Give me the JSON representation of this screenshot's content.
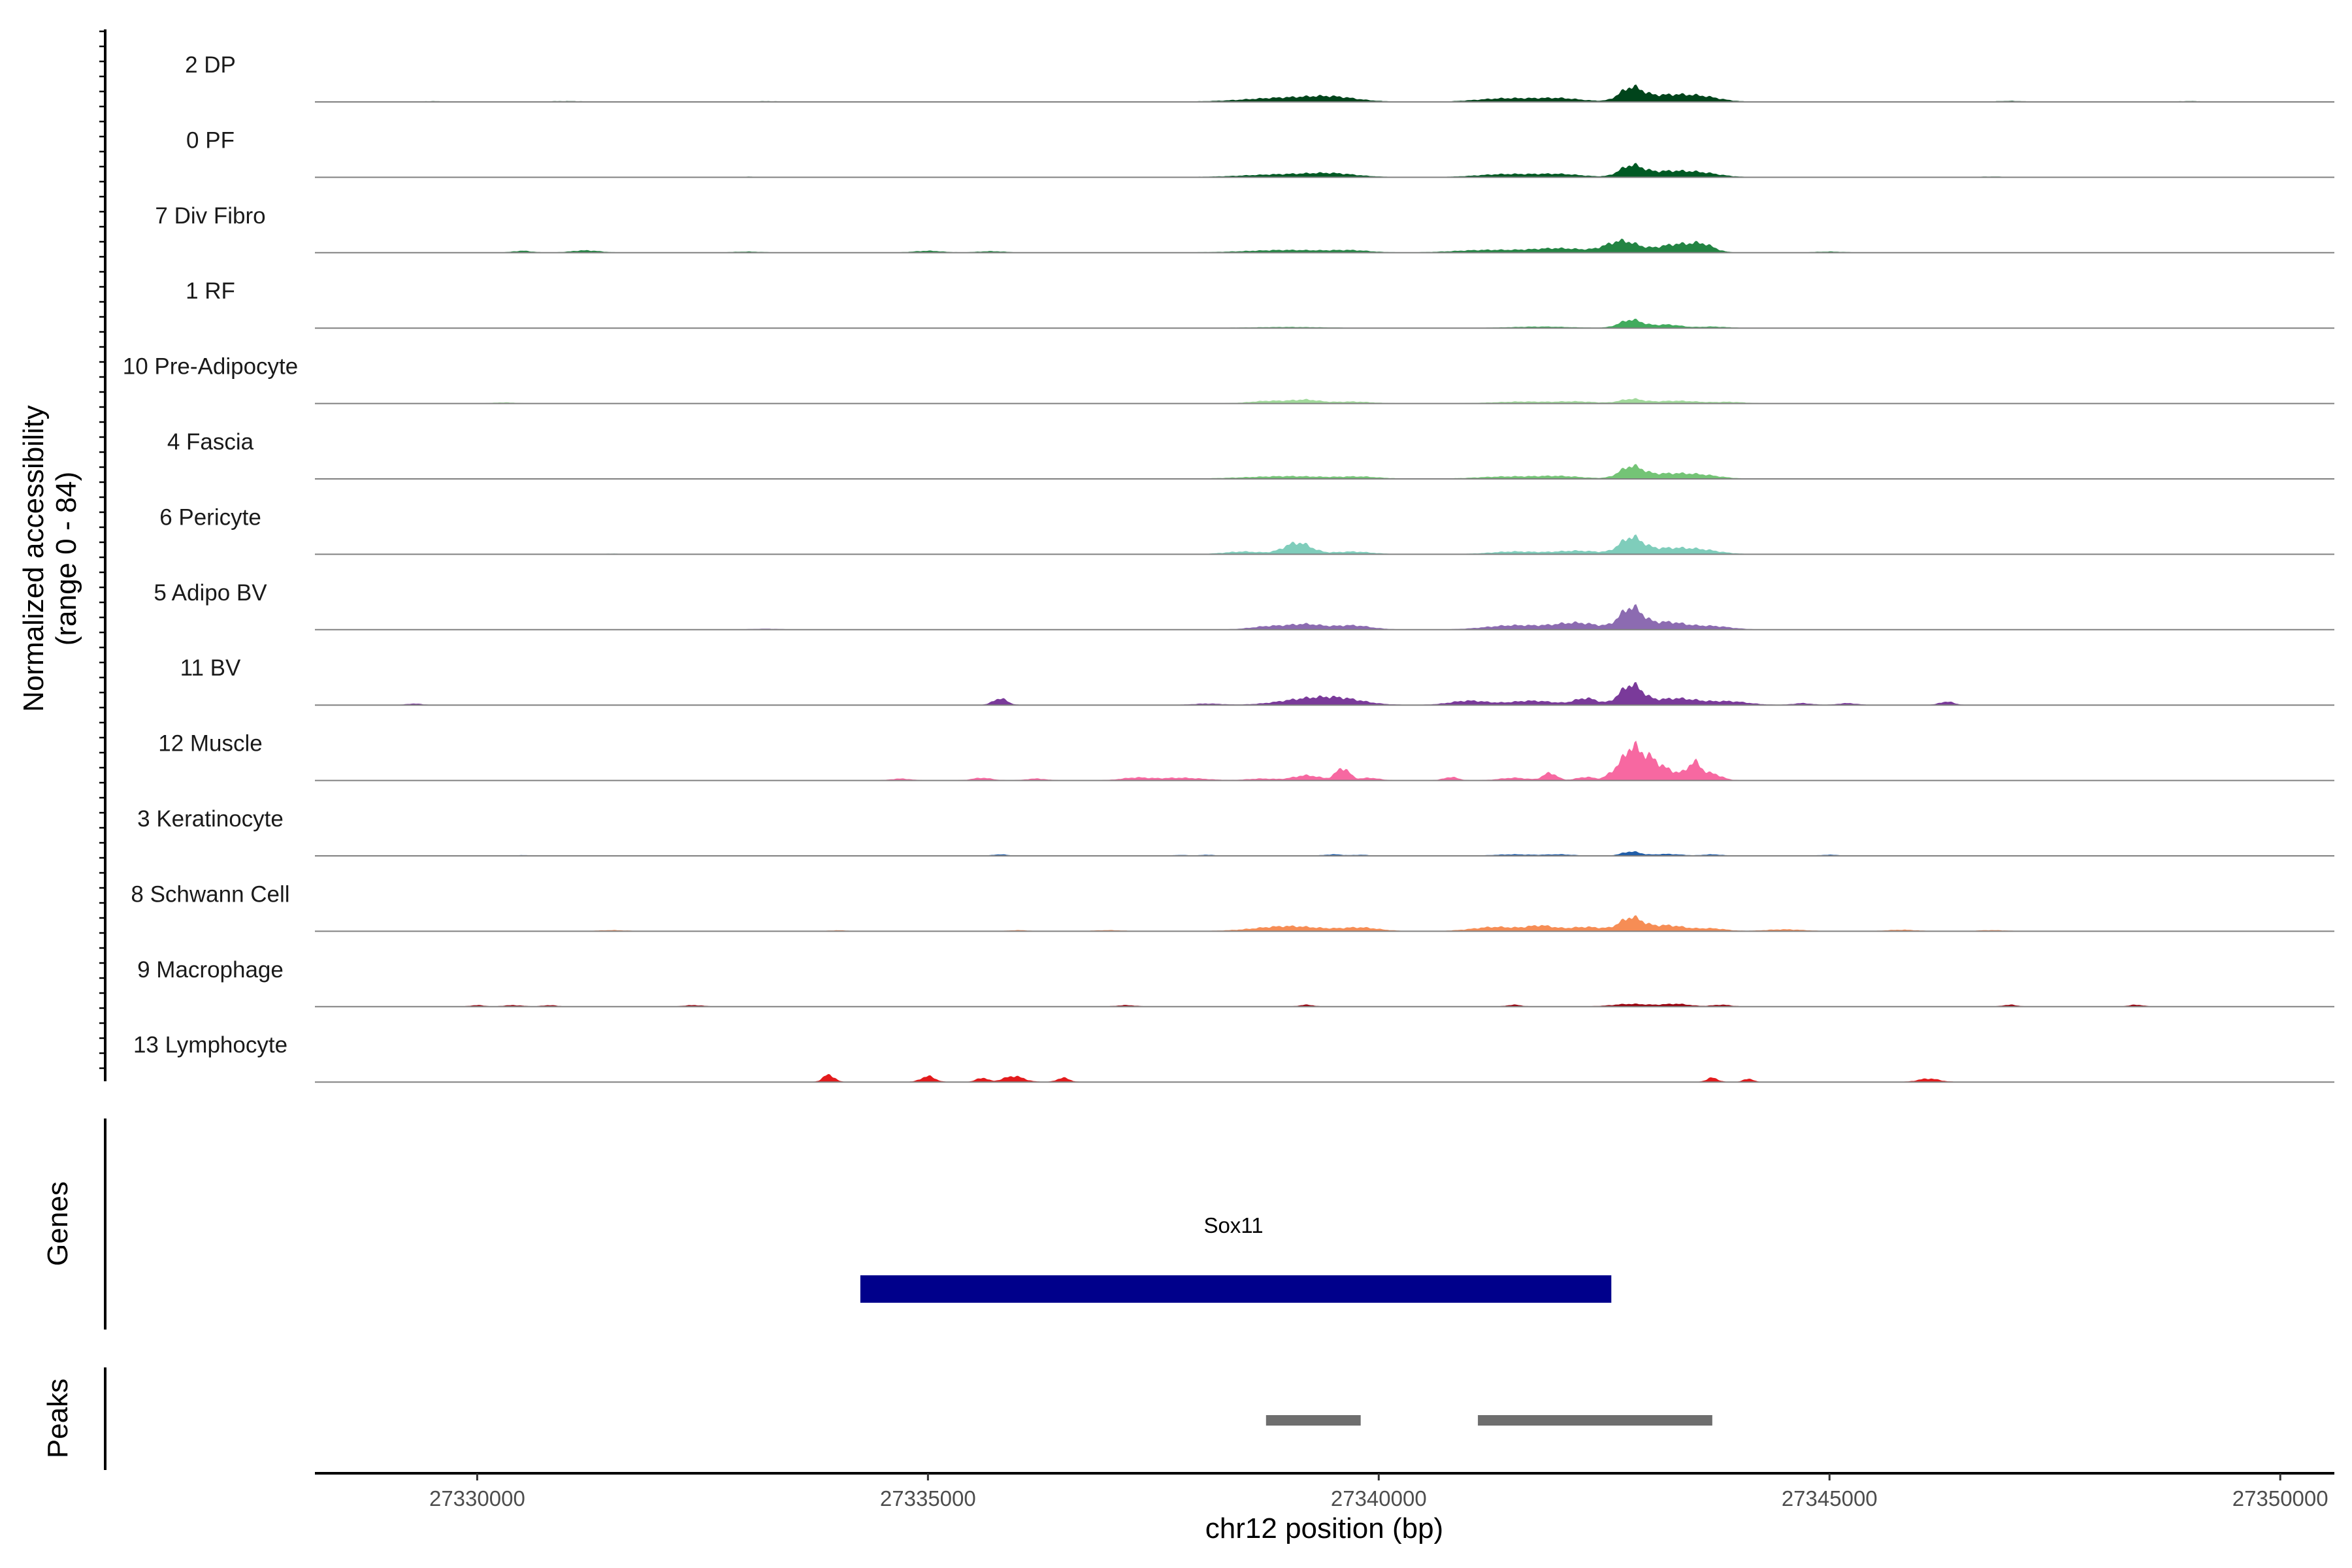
{
  "chart_data": {
    "type": "area",
    "region": "chr12",
    "xlim": [
      27328200,
      27350600
    ],
    "xticks": [
      27330000,
      27335000,
      27340000,
      27345000,
      27350000
    ],
    "tick_labels": [
      "27330000",
      "27335000",
      "27340000",
      "27345000",
      "27350000"
    ],
    "xlabel": "chr12 position (bp)",
    "ylabel_line1": "Normalized accessibility",
    "ylabel_line2": "(range 0 - 84)",
    "ylim": [
      0,
      84
    ],
    "genes_label": "Genes",
    "peaks_label": "Peaks",
    "tracks": [
      {
        "name": "2 DP",
        "color": "#00441b",
        "peaks": [
          [
            27329500,
            350,
            0.5
          ],
          [
            27331000,
            400,
            0.6
          ],
          [
            27333200,
            400,
            0.5
          ],
          [
            27339000,
            900,
            5
          ],
          [
            27339500,
            500,
            4
          ],
          [
            27341400,
            600,
            4
          ],
          [
            27342000,
            500,
            4
          ],
          [
            27342800,
            250,
            16
          ],
          [
            27343200,
            500,
            8
          ],
          [
            27343600,
            400,
            5
          ],
          [
            27347000,
            300,
            0.8
          ],
          [
            27349000,
            300,
            0.6
          ]
        ]
      },
      {
        "name": "0 PF",
        "color": "#005a24",
        "peaks": [
          [
            27333000,
            300,
            0.4
          ],
          [
            27339000,
            900,
            3.5
          ],
          [
            27339500,
            500,
            3
          ],
          [
            27341400,
            600,
            3.5
          ],
          [
            27342000,
            500,
            3.5
          ],
          [
            27342800,
            250,
            13
          ],
          [
            27343200,
            500,
            7
          ],
          [
            27343600,
            400,
            4
          ],
          [
            27346800,
            300,
            0.5
          ]
        ]
      },
      {
        "name": "7 Div Fibro",
        "color": "#238443",
        "peaks": [
          [
            27330500,
            200,
            2
          ],
          [
            27331200,
            300,
            2.5
          ],
          [
            27333000,
            300,
            1
          ],
          [
            27335000,
            300,
            2
          ],
          [
            27335700,
            300,
            1.5
          ],
          [
            27339000,
            900,
            3
          ],
          [
            27339700,
            400,
            2
          ],
          [
            27341200,
            700,
            3
          ],
          [
            27342000,
            600,
            5
          ],
          [
            27342700,
            350,
            14
          ],
          [
            27343300,
            400,
            10
          ],
          [
            27343600,
            250,
            8
          ],
          [
            27345000,
            300,
            1
          ]
        ]
      },
      {
        "name": "1 RF",
        "color": "#41ab5d",
        "peaks": [
          [
            27339000,
            700,
            1
          ],
          [
            27341800,
            600,
            1.5
          ],
          [
            27342800,
            250,
            10
          ],
          [
            27343200,
            300,
            4
          ],
          [
            27343700,
            300,
            1.5
          ]
        ]
      },
      {
        "name": "10 Pre-Adipocyte",
        "color": "#a1d99b",
        "peaks": [
          [
            27330300,
            200,
            1
          ],
          [
            27338800,
            400,
            3
          ],
          [
            27339200,
            300,
            4
          ],
          [
            27339700,
            400,
            2
          ],
          [
            27341600,
            600,
            2
          ],
          [
            27342200,
            400,
            2
          ],
          [
            27342800,
            250,
            5
          ],
          [
            27343300,
            500,
            3
          ],
          [
            27343900,
            300,
            1.5
          ]
        ]
      },
      {
        "name": "4 Fascia",
        "color": "#74c476",
        "peaks": [
          [
            27339000,
            900,
            3
          ],
          [
            27339800,
            400,
            2
          ],
          [
            27341400,
            600,
            2.5
          ],
          [
            27342000,
            500,
            3
          ],
          [
            27342800,
            250,
            14
          ],
          [
            27343200,
            500,
            6
          ],
          [
            27343600,
            400,
            3.5
          ]
        ]
      },
      {
        "name": "6 Pericyte",
        "color": "#7fcdbb",
        "peaks": [
          [
            27331500,
            300,
            0.4
          ],
          [
            27338500,
            400,
            3
          ],
          [
            27339100,
            300,
            14
          ],
          [
            27339700,
            400,
            3
          ],
          [
            27341500,
            500,
            3
          ],
          [
            27342200,
            500,
            4
          ],
          [
            27342800,
            250,
            19
          ],
          [
            27343200,
            500,
            7
          ],
          [
            27343600,
            400,
            4
          ]
        ]
      },
      {
        "name": "5 Adipo BV",
        "color": "#8c6bb1",
        "peaks": [
          [
            27333200,
            300,
            0.8
          ],
          [
            27338800,
            400,
            4
          ],
          [
            27339200,
            350,
            6
          ],
          [
            27339700,
            400,
            5
          ],
          [
            27341500,
            600,
            5
          ],
          [
            27342200,
            500,
            8
          ],
          [
            27342800,
            250,
            26
          ],
          [
            27343200,
            400,
            9
          ],
          [
            27343700,
            400,
            4
          ]
        ]
      },
      {
        "name": "11 BV",
        "color": "#7a3a9a",
        "peaks": [
          [
            27329300,
            150,
            1.5
          ],
          [
            27335800,
            150,
            8
          ],
          [
            27338100,
            300,
            1.5
          ],
          [
            27339200,
            600,
            7
          ],
          [
            27339600,
            500,
            6
          ],
          [
            27341000,
            400,
            5
          ],
          [
            27341700,
            500,
            5
          ],
          [
            27342300,
            250,
            8
          ],
          [
            27342800,
            250,
            24
          ],
          [
            27343300,
            500,
            8
          ],
          [
            27343900,
            400,
            4
          ],
          [
            27344700,
            200,
            2
          ],
          [
            27345200,
            200,
            2
          ],
          [
            27346300,
            150,
            4
          ]
        ]
      },
      {
        "name": "12 Muscle",
        "color": "#f768a1",
        "peaks": [
          [
            27334700,
            200,
            2
          ],
          [
            27335600,
            200,
            3
          ],
          [
            27336200,
            200,
            2
          ],
          [
            27337300,
            300,
            3
          ],
          [
            27337800,
            500,
            3
          ],
          [
            27338700,
            300,
            2
          ],
          [
            27339200,
            300,
            6
          ],
          [
            27339600,
            150,
            15
          ],
          [
            27339900,
            200,
            3
          ],
          [
            27340800,
            150,
            4
          ],
          [
            27341500,
            300,
            3
          ],
          [
            27341900,
            150,
            9
          ],
          [
            27342300,
            200,
            4
          ],
          [
            27342600,
            150,
            8
          ],
          [
            27342800,
            200,
            38
          ],
          [
            27343000,
            200,
            20
          ],
          [
            27343200,
            300,
            12
          ],
          [
            27343500,
            150,
            20
          ],
          [
            27343700,
            200,
            8
          ]
        ]
      },
      {
        "name": "3 Keratinocyte",
        "color": "#225ea8",
        "peaks": [
          [
            27330500,
            200,
            0.5
          ],
          [
            27335800,
            150,
            1.5
          ],
          [
            27337800,
            150,
            0.8
          ],
          [
            27338100,
            150,
            1
          ],
          [
            27339500,
            200,
            1.5
          ],
          [
            27339800,
            150,
            1
          ],
          [
            27341500,
            400,
            1.5
          ],
          [
            27342000,
            300,
            1.5
          ],
          [
            27342800,
            200,
            5
          ],
          [
            27343200,
            300,
            2
          ],
          [
            27343700,
            200,
            1.5
          ],
          [
            27345000,
            200,
            1
          ]
        ]
      },
      {
        "name": "8 Schwann Cell",
        "color": "#f68d55",
        "peaks": [
          [
            27331500,
            300,
            1
          ],
          [
            27334000,
            200,
            0.8
          ],
          [
            27336000,
            200,
            1
          ],
          [
            27337000,
            300,
            1
          ],
          [
            27339000,
            700,
            6
          ],
          [
            27339800,
            400,
            4
          ],
          [
            27341300,
            500,
            5
          ],
          [
            27341800,
            300,
            6
          ],
          [
            27342300,
            400,
            5
          ],
          [
            27342800,
            250,
            16
          ],
          [
            27343200,
            400,
            7
          ],
          [
            27343700,
            300,
            3
          ],
          [
            27344500,
            400,
            2
          ],
          [
            27345800,
            300,
            1.5
          ],
          [
            27346800,
            300,
            1
          ]
        ]
      },
      {
        "name": "9 Macrophage",
        "color": "#99000d",
        "peaks": [
          [
            27330000,
            150,
            1.5
          ],
          [
            27330400,
            200,
            1.5
          ],
          [
            27330800,
            150,
            1.5
          ],
          [
            27332400,
            200,
            1.5
          ],
          [
            27337200,
            200,
            1.5
          ],
          [
            27339200,
            150,
            2
          ],
          [
            27341500,
            150,
            2
          ],
          [
            27342800,
            400,
            3
          ],
          [
            27343300,
            300,
            3
          ],
          [
            27343800,
            200,
            2
          ],
          [
            27347000,
            150,
            2
          ],
          [
            27348400,
            150,
            2
          ]
        ]
      },
      {
        "name": "13 Lymphocyte",
        "color": "#e31a1c",
        "peaks": [
          [
            27333900,
            120,
            9
          ],
          [
            27335000,
            150,
            7
          ],
          [
            27335600,
            120,
            5
          ],
          [
            27335950,
            220,
            7
          ],
          [
            27336500,
            130,
            5
          ],
          [
            27343700,
            120,
            5
          ],
          [
            27344100,
            100,
            4
          ],
          [
            27346100,
            220,
            4
          ]
        ]
      }
    ],
    "gene": {
      "name": "Sox11",
      "start": 27334250,
      "end": 27342580,
      "color": "#00008b"
    },
    "peak_regions": [
      [
        27338750,
        27339800
      ],
      [
        27341100,
        27343700
      ]
    ],
    "peak_color": "#6e6e6e"
  }
}
